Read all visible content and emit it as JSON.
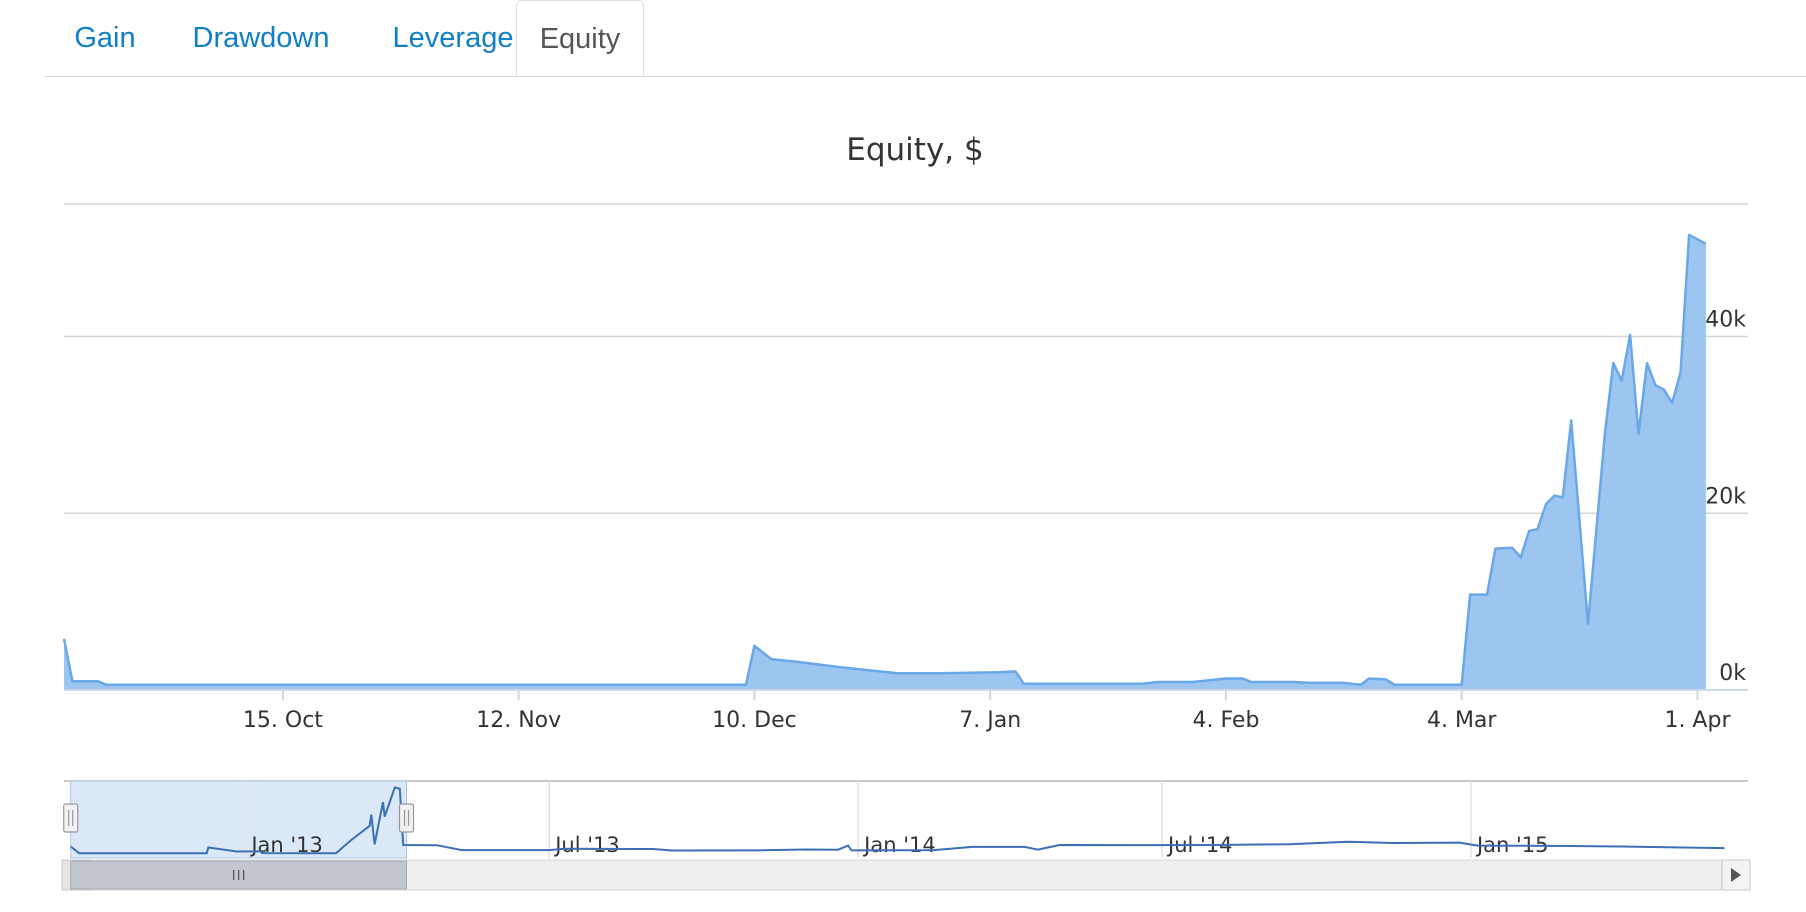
{
  "tabs": {
    "gain": "Gain",
    "drawdown": "Drawdown",
    "leverage": "Leverage",
    "equity": "Equity"
  },
  "colors": {
    "tab_link": "#0f7fc7",
    "area_fill": "#9cc5ef",
    "area_line": "#6aa8e8",
    "navigator_mask": "#dbe8f8",
    "navigator_line": "#3d6fb3"
  },
  "chart_data": {
    "type": "area",
    "title": "Equity, $",
    "ylim": [
      0,
      55000
    ],
    "y_ticks": [
      {
        "value": 0,
        "label": "0k"
      },
      {
        "value": 20000,
        "label": "20k"
      },
      {
        "value": 40000,
        "label": "40k"
      }
    ],
    "x_ticks": [
      {
        "date": "2012-10-15",
        "label": "15. Oct"
      },
      {
        "date": "2012-11-12",
        "label": "12. Nov"
      },
      {
        "date": "2012-12-10",
        "label": "10. Dec"
      },
      {
        "date": "2013-01-07",
        "label": "7. Jan"
      },
      {
        "date": "2013-02-04",
        "label": "4. Feb"
      },
      {
        "date": "2013-03-04",
        "label": "4. Mar"
      },
      {
        "date": "2013-04-01",
        "label": "1. Apr"
      }
    ],
    "x_range": [
      "2012-09-19",
      "2013-04-07"
    ],
    "grid": true,
    "series": [
      {
        "points": [
          [
            "2012-09-19",
            5800
          ],
          [
            "2012-09-20",
            1000
          ],
          [
            "2012-09-23",
            1000
          ],
          [
            "2012-09-24",
            600
          ],
          [
            "2012-09-28",
            600
          ],
          [
            "2012-10-05",
            600
          ],
          [
            "2012-11-01",
            600
          ],
          [
            "2012-12-09",
            600
          ],
          [
            "2012-12-10",
            5000
          ],
          [
            "2012-12-12",
            3500
          ],
          [
            "2012-12-15",
            3200
          ],
          [
            "2012-12-20",
            2600
          ],
          [
            "2012-12-24",
            2200
          ],
          [
            "2012-12-27",
            1900
          ],
          [
            "2013-01-01",
            1900
          ],
          [
            "2013-01-08",
            2000
          ],
          [
            "2013-01-10",
            2100
          ],
          [
            "2013-01-11",
            700
          ],
          [
            "2013-01-25",
            700
          ],
          [
            "2013-01-27",
            900
          ],
          [
            "2013-01-31",
            900
          ],
          [
            "2013-02-04",
            1300
          ],
          [
            "2013-02-06",
            1300
          ],
          [
            "2013-02-07",
            900
          ],
          [
            "2013-02-12",
            900
          ],
          [
            "2013-02-14",
            800
          ],
          [
            "2013-02-18",
            800
          ],
          [
            "2013-02-20",
            600
          ],
          [
            "2013-02-21",
            1300
          ],
          [
            "2013-02-23",
            1200
          ],
          [
            "2013-02-24",
            600
          ],
          [
            "2013-03-04",
            600
          ],
          [
            "2013-03-05",
            10800
          ],
          [
            "2013-03-07",
            10800
          ],
          [
            "2013-03-08",
            16000
          ],
          [
            "2013-03-10",
            16100
          ],
          [
            "2013-03-11",
            15000
          ],
          [
            "2013-03-12",
            18000
          ],
          [
            "2013-03-13",
            18200
          ],
          [
            "2013-03-14",
            21000
          ],
          [
            "2013-03-15",
            22000
          ],
          [
            "2013-03-16",
            21800
          ],
          [
            "2013-03-17",
            30500
          ],
          [
            "2013-03-19",
            7500
          ],
          [
            "2013-03-21",
            29000
          ],
          [
            "2013-03-22",
            37000
          ],
          [
            "2013-03-23",
            35000
          ],
          [
            "2013-03-24",
            40200
          ],
          [
            "2013-03-25",
            29000
          ],
          [
            "2013-03-26",
            37000
          ],
          [
            "2013-03-27",
            34500
          ],
          [
            "2013-03-28",
            34000
          ],
          [
            "2013-03-29",
            32500
          ],
          [
            "2013-03-30",
            36000
          ],
          [
            "2013-03-31",
            51500
          ],
          [
            "2013-04-02",
            50500
          ]
        ]
      }
    ]
  },
  "navigator": {
    "x_range": [
      "2012-09-15",
      "2015-06-15"
    ],
    "selected_range": [
      "2012-09-19",
      "2013-04-07"
    ],
    "x_ticks": [
      {
        "date": "2013-01-01",
        "label": "Jan '13"
      },
      {
        "date": "2013-07-01",
        "label": "Jul '13"
      },
      {
        "date": "2014-01-01",
        "label": "Jan '14"
      },
      {
        "date": "2014-07-01",
        "label": "Jul '14"
      },
      {
        "date": "2015-01-01",
        "label": "Jan '15"
      }
    ],
    "ylim": [
      0,
      55000
    ],
    "series": [
      [
        "2012-09-19",
        5800
      ],
      [
        "2012-09-24",
        600
      ],
      [
        "2012-12-09",
        600
      ],
      [
        "2012-12-10",
        5000
      ],
      [
        "2012-12-27",
        1900
      ],
      [
        "2013-01-10",
        2100
      ],
      [
        "2013-01-11",
        700
      ],
      [
        "2013-02-24",
        600
      ],
      [
        "2013-03-05",
        10800
      ],
      [
        "2013-03-16",
        21800
      ],
      [
        "2013-03-17",
        30500
      ],
      [
        "2013-03-19",
        7500
      ],
      [
        "2013-03-24",
        40200
      ],
      [
        "2013-03-25",
        29000
      ],
      [
        "2013-03-31",
        51500
      ],
      [
        "2013-04-03",
        50500
      ],
      [
        "2013-04-05",
        7000
      ],
      [
        "2013-04-25",
        6800
      ],
      [
        "2013-05-10",
        3000
      ],
      [
        "2013-07-01",
        3000
      ],
      [
        "2013-07-10",
        4000
      ],
      [
        "2013-09-01",
        3900
      ],
      [
        "2013-09-12",
        2700
      ],
      [
        "2013-11-01",
        2800
      ],
      [
        "2013-12-01",
        3500
      ],
      [
        "2013-12-20",
        3300
      ],
      [
        "2013-12-26",
        6500
      ],
      [
        "2013-12-28",
        2800
      ],
      [
        "2014-02-15",
        3000
      ],
      [
        "2014-03-10",
        5500
      ],
      [
        "2014-04-10",
        5500
      ],
      [
        "2014-04-18",
        3400
      ],
      [
        "2014-05-01",
        7000
      ],
      [
        "2014-06-15",
        6900
      ],
      [
        "2014-08-01",
        7000
      ],
      [
        "2014-09-15",
        7600
      ],
      [
        "2014-10-20",
        9500
      ],
      [
        "2014-11-15",
        8500
      ],
      [
        "2014-12-25",
        8800
      ],
      [
        "2015-01-05",
        6500
      ],
      [
        "2015-03-01",
        6200
      ],
      [
        "2015-04-01",
        5800
      ],
      [
        "2015-06-01",
        4600
      ]
    ]
  }
}
